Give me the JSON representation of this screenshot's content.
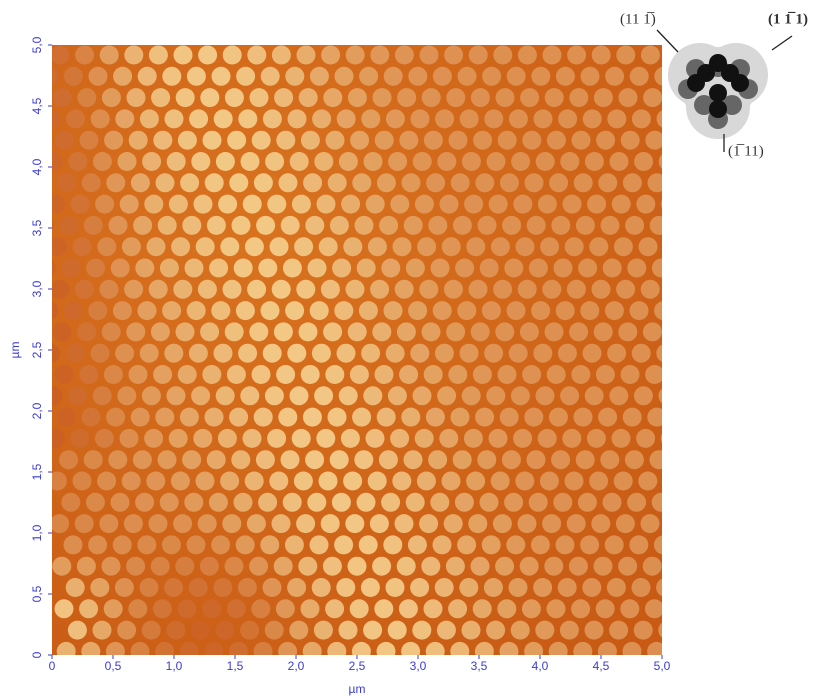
{
  "image": {
    "xlabel": "µm",
    "ylabel": "µm",
    "xticks": [
      0,
      {
        "value": 0.5,
        "label": "0,5"
      },
      {
        "value": 1.0,
        "label": "1,0"
      },
      {
        "value": 1.5,
        "label": "1,5"
      },
      {
        "value": 2.0,
        "label": "2,0"
      },
      {
        "value": 2.5,
        "label": "2,5"
      },
      {
        "value": 3.0,
        "label": "3,0"
      },
      {
        "value": 3.5,
        "label": "3,5"
      },
      {
        "value": 4.0,
        "label": "4,0"
      },
      {
        "value": 4.5,
        "label": "4,5"
      },
      {
        "value": 5.0,
        "label": "5,0"
      }
    ],
    "yticks": [
      0,
      {
        "value": 0.5,
        "label": "0,5"
      },
      {
        "value": 1.0,
        "label": "1,0"
      },
      {
        "value": 1.5,
        "label": "1,5"
      },
      {
        "value": 2.0,
        "label": "2,0"
      },
      {
        "value": 2.5,
        "label": "2,5"
      },
      {
        "value": 3.0,
        "label": "3,0"
      },
      {
        "value": 3.5,
        "label": "3,5"
      },
      {
        "value": 4.0,
        "label": "4,0"
      },
      {
        "value": 4.5,
        "label": "4,5"
      },
      {
        "value": 5.0,
        "label": "5,0"
      }
    ],
    "xlim": [
      0,
      5.0
    ],
    "ylim": [
      0,
      5.0
    ]
  },
  "inset": {
    "left_label": "(11 1̅)",
    "right_label": "(1 1̅ 1)",
    "bottom_label": "(1̅ 11)"
  }
}
